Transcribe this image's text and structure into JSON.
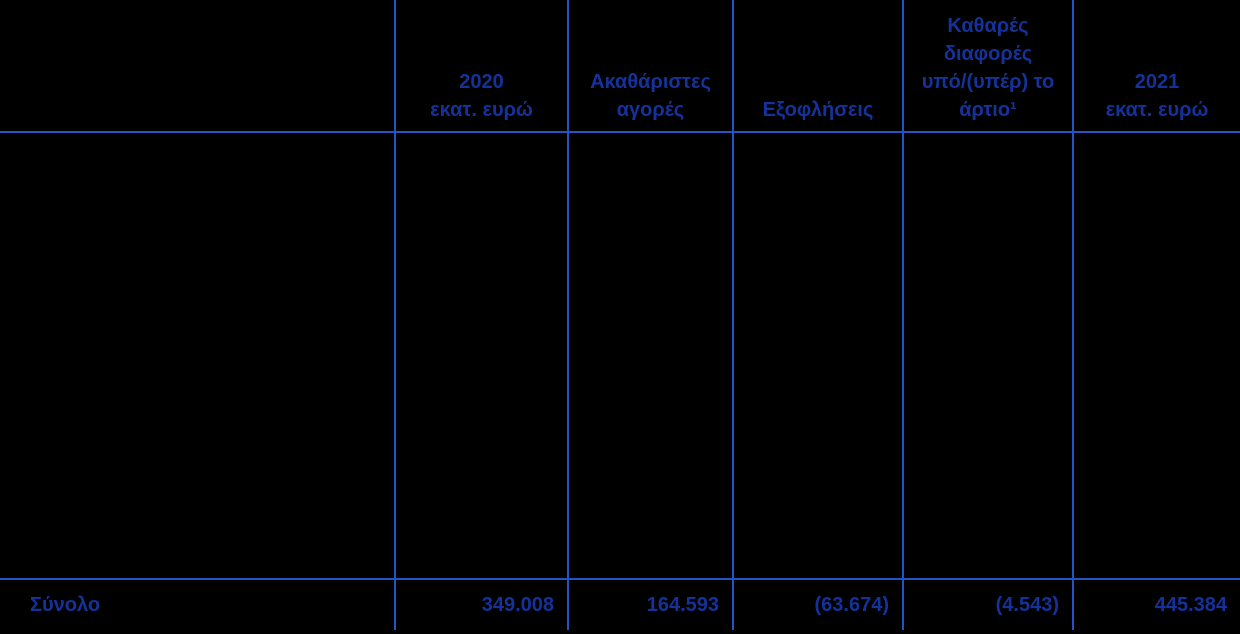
{
  "table": {
    "title_semantic": "securities-portfolio-table",
    "colors": {
      "background": "#000000",
      "line": "#2154c4",
      "text": "#14329a"
    },
    "columns": [
      {
        "id": "row-label",
        "header": ""
      },
      {
        "id": "balance-2020",
        "header": "2020\nεκατ. ευρώ"
      },
      {
        "id": "gross-purchases",
        "header": "Ακαθάριστες\nαγορές"
      },
      {
        "id": "redemptions",
        "header": "Εξοφλήσεις"
      },
      {
        "id": "net-premium-discount",
        "header": "Καθαρές\nδιαφορές\nυπό/(υπέρ) το\nάρτιο¹"
      },
      {
        "id": "balance-2021",
        "header": "2021\nεκατ. ευρώ"
      }
    ],
    "total_row": {
      "label": "Σύνολο",
      "values": [
        "349.008",
        "164.593",
        "(63.674)",
        "(4.543)",
        "445.384"
      ]
    }
  }
}
